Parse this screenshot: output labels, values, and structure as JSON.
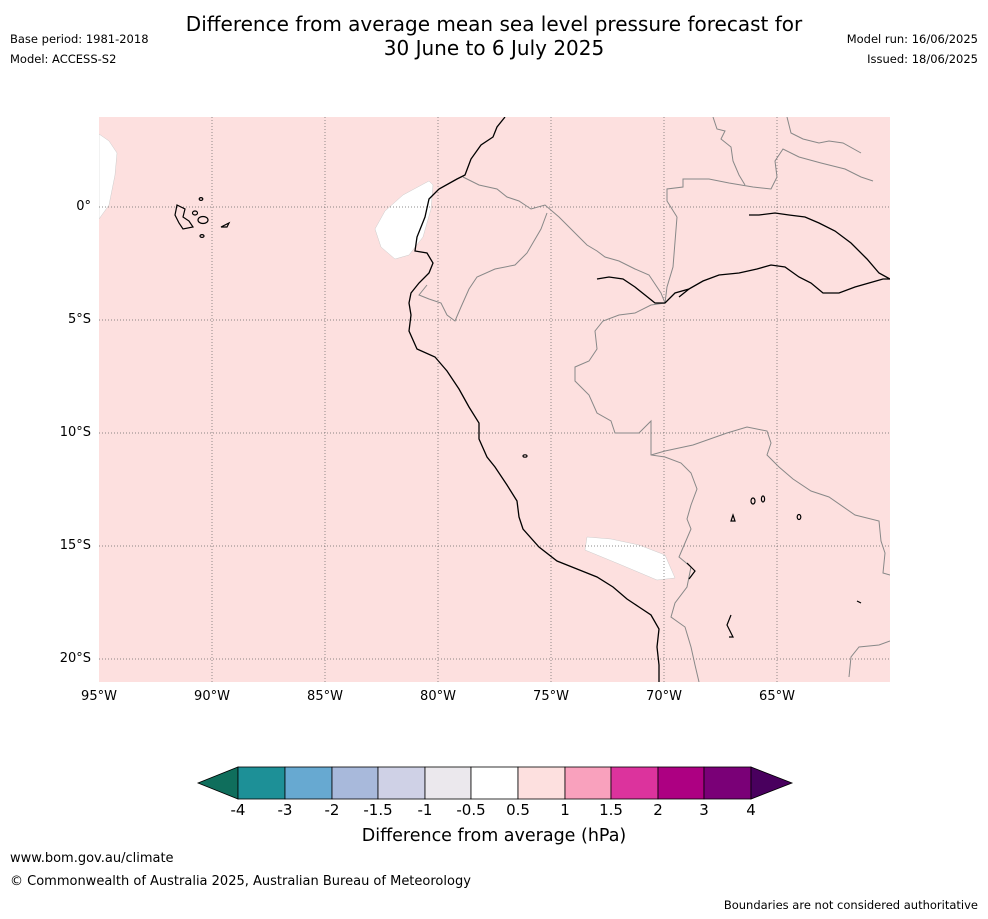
{
  "title": {
    "line1": "Difference from average mean sea level pressure forecast for",
    "line2": "30 June to 6 July 2025"
  },
  "meta_left": {
    "base_period": "Base period: 1981-2018",
    "model": "Model: ACCESS-S2"
  },
  "meta_right": {
    "model_run": "Model run: 16/06/2025",
    "issued": "Issued: 18/06/2025"
  },
  "map": {
    "fill_color": "#fde0df",
    "latitude_labels": [
      "0°",
      "5°S",
      "10°S",
      "15°S",
      "20°S"
    ],
    "longitude_labels": [
      "95°W",
      "90°W",
      "85°W",
      "80°W",
      "75°W",
      "70°W",
      "65°W"
    ]
  },
  "colorbar": {
    "colors": [
      "#0f6e5c",
      "#1d9097",
      "#67a9d1",
      "#a8b9db",
      "#cfd1e6",
      "#ebe8ed",
      "#ffffff",
      "#fde0df",
      "#f9a1bd",
      "#dc339d",
      "#ad0082",
      "#7a0077",
      "#49005e"
    ],
    "tick_labels": [
      "-4",
      "-3",
      "-2",
      "-1.5",
      "-1",
      "-0.5",
      "0.5",
      "1",
      "1.5",
      "2",
      "3",
      "4"
    ],
    "caption": "Difference from average (hPa)"
  },
  "footer": {
    "website": "www.bom.gov.au/climate",
    "copyright": "© Commonwealth of Australia 2025, Australian Bureau of Meteorology",
    "disclaimer": "Boundaries are not considered authoritative"
  }
}
